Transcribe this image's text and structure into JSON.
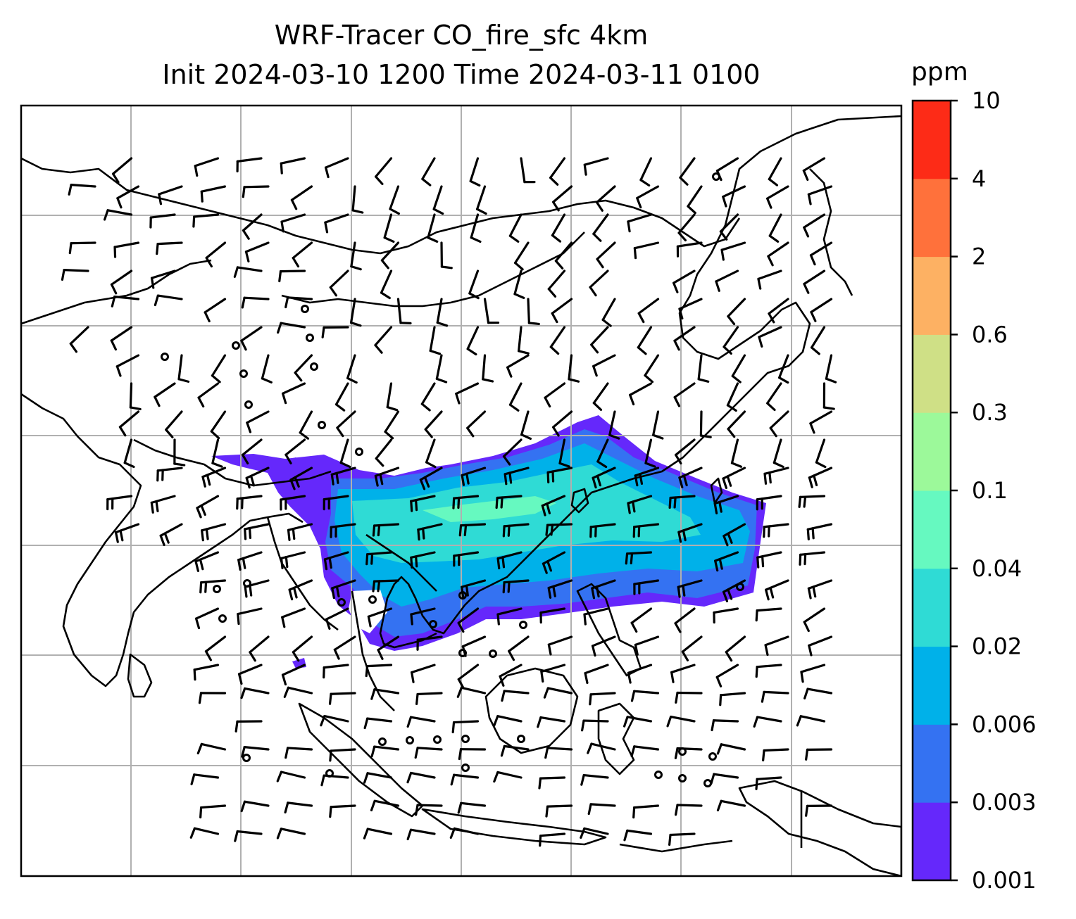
{
  "title": {
    "line1": "WRF-Tracer CO_fire_sfc 4km",
    "line2": "Init 2024-03-10 1200 Time 2024-03-11 0100"
  },
  "colorbar": {
    "unit": "ppm",
    "levels": [
      "0.001",
      "0.003",
      "0.006",
      "0.02",
      "0.04",
      "0.1",
      "0.3",
      "0.6",
      "2",
      "4",
      "10"
    ],
    "colors": [
      "#6528fb",
      "#3472f2",
      "#00b1e9",
      "#2fdbd5",
      "#66f9c0",
      "#9cf99a",
      "#cfe086",
      "#fdb163",
      "#ff713b",
      "#fd2b17"
    ]
  },
  "map": {
    "grid": "on",
    "features": [
      "coastlines",
      "country-borders",
      "wind-barbs",
      "calm-circles",
      "tracer-plume"
    ]
  }
}
